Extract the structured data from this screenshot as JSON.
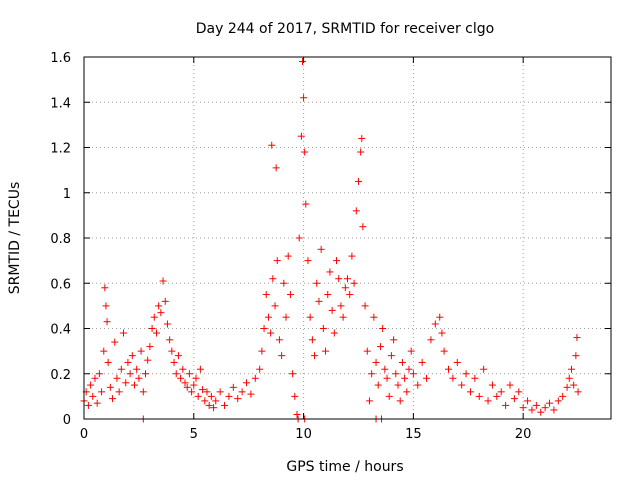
{
  "chart_data": {
    "type": "scatter",
    "title": "Day 244 of 2017, SRMTID for receiver clgo",
    "xlabel": "GPS time / hours",
    "ylabel": "SRMTID / TECUs",
    "xlim": [
      0,
      24
    ],
    "ylim": [
      0,
      1.6
    ],
    "x_ticks": [
      "0",
      "5",
      "10",
      "15",
      "20"
    ],
    "y_ticks": [
      "0",
      "0.2",
      "0.4",
      "0.6",
      "0.8",
      "1",
      "1.2",
      "1.4",
      "1.6"
    ],
    "grid": true,
    "marker": "+",
    "color": "#ff0000",
    "series": [
      {
        "name": "SRMTID",
        "points": [
          [
            0.0,
            0.08
          ],
          [
            0.1,
            0.12
          ],
          [
            0.2,
            0.06
          ],
          [
            0.3,
            0.15
          ],
          [
            0.4,
            0.1
          ],
          [
            0.5,
            0.18
          ],
          [
            0.6,
            0.07
          ],
          [
            0.7,
            0.2
          ],
          [
            0.8,
            0.12
          ],
          [
            0.9,
            0.3
          ],
          [
            0.95,
            0.58
          ],
          [
            1.0,
            0.5
          ],
          [
            1.05,
            0.43
          ],
          [
            1.1,
            0.25
          ],
          [
            1.2,
            0.14
          ],
          [
            1.3,
            0.09
          ],
          [
            1.4,
            0.34
          ],
          [
            1.5,
            0.18
          ],
          [
            1.6,
            0.12
          ],
          [
            1.7,
            0.22
          ],
          [
            1.8,
            0.38
          ],
          [
            1.9,
            0.16
          ],
          [
            2.0,
            0.25
          ],
          [
            2.1,
            0.2
          ],
          [
            2.2,
            0.28
          ],
          [
            2.3,
            0.15
          ],
          [
            2.4,
            0.22
          ],
          [
            2.5,
            0.18
          ],
          [
            2.6,
            0.3
          ],
          [
            2.7,
            0.12
          ],
          [
            2.8,
            0.2
          ],
          [
            2.9,
            0.26
          ],
          [
            3.0,
            0.32
          ],
          [
            3.1,
            0.4
          ],
          [
            3.2,
            0.45
          ],
          [
            3.3,
            0.38
          ],
          [
            3.4,
            0.5
          ],
          [
            3.5,
            0.47
          ],
          [
            3.6,
            0.61
          ],
          [
            3.7,
            0.52
          ],
          [
            3.8,
            0.42
          ],
          [
            3.9,
            0.35
          ],
          [
            4.0,
            0.3
          ],
          [
            4.1,
            0.25
          ],
          [
            4.2,
            0.2
          ],
          [
            4.3,
            0.28
          ],
          [
            4.4,
            0.18
          ],
          [
            4.5,
            0.22
          ],
          [
            4.6,
            0.16
          ],
          [
            4.7,
            0.14
          ],
          [
            4.8,
            0.2
          ],
          [
            4.9,
            0.12
          ],
          [
            5.0,
            0.15
          ],
          [
            5.1,
            0.18
          ],
          [
            5.2,
            0.1
          ],
          [
            5.3,
            0.22
          ],
          [
            5.4,
            0.13
          ],
          [
            5.5,
            0.08
          ],
          [
            5.6,
            0.12
          ],
          [
            5.7,
            0.06
          ],
          [
            5.8,
            0.1
          ],
          [
            5.9,
            0.05
          ],
          [
            6.0,
            0.08
          ],
          [
            6.2,
            0.12
          ],
          [
            6.4,
            0.06
          ],
          [
            6.6,
            0.1
          ],
          [
            6.8,
            0.14
          ],
          [
            7.0,
            0.09
          ],
          [
            7.2,
            0.12
          ],
          [
            7.4,
            0.16
          ],
          [
            7.6,
            0.11
          ],
          [
            7.8,
            0.18
          ],
          [
            8.0,
            0.22
          ],
          [
            8.1,
            0.3
          ],
          [
            8.2,
            0.4
          ],
          [
            8.3,
            0.55
          ],
          [
            8.4,
            0.45
          ],
          [
            8.5,
            0.38
          ],
          [
            8.55,
            1.21
          ],
          [
            8.6,
            0.62
          ],
          [
            8.7,
            0.5
          ],
          [
            8.75,
            1.11
          ],
          [
            8.8,
            0.7
          ],
          [
            8.9,
            0.35
          ],
          [
            9.0,
            0.28
          ],
          [
            9.1,
            0.6
          ],
          [
            9.2,
            0.45
          ],
          [
            9.3,
            0.72
          ],
          [
            9.4,
            0.55
          ],
          [
            9.5,
            0.2
          ],
          [
            9.6,
            0.1
          ],
          [
            9.7,
            0.02
          ],
          [
            9.8,
            0.8
          ],
          [
            9.9,
            1.25
          ],
          [
            9.95,
            1.58
          ],
          [
            10.0,
            1.42
          ],
          [
            10.05,
            1.18
          ],
          [
            10.1,
            0.95
          ],
          [
            10.2,
            0.7
          ],
          [
            10.3,
            0.45
          ],
          [
            10.4,
            0.35
          ],
          [
            10.5,
            0.28
          ],
          [
            10.6,
            0.6
          ],
          [
            10.7,
            0.52
          ],
          [
            10.8,
            0.75
          ],
          [
            10.9,
            0.4
          ],
          [
            11.0,
            0.3
          ],
          [
            11.1,
            0.55
          ],
          [
            11.2,
            0.65
          ],
          [
            11.3,
            0.48
          ],
          [
            11.4,
            0.38
          ],
          [
            11.5,
            0.7
          ],
          [
            11.6,
            0.62
          ],
          [
            11.7,
            0.5
          ],
          [
            11.8,
            0.45
          ],
          [
            11.9,
            0.58
          ],
          [
            12.0,
            0.62
          ],
          [
            12.1,
            0.55
          ],
          [
            12.2,
            0.72
          ],
          [
            12.3,
            0.6
          ],
          [
            12.4,
            0.92
          ],
          [
            12.5,
            1.05
          ],
          [
            12.6,
            1.18
          ],
          [
            12.65,
            1.24
          ],
          [
            12.7,
            0.85
          ],
          [
            12.8,
            0.5
          ],
          [
            12.9,
            0.3
          ],
          [
            13.0,
            0.08
          ],
          [
            13.1,
            0.2
          ],
          [
            13.2,
            0.45
          ],
          [
            13.3,
            0.25
          ],
          [
            13.4,
            0.15
          ],
          [
            13.5,
            0.32
          ],
          [
            13.6,
            0.4
          ],
          [
            13.7,
            0.22
          ],
          [
            13.8,
            0.18
          ],
          [
            13.9,
            0.1
          ],
          [
            14.0,
            0.28
          ],
          [
            14.1,
            0.35
          ],
          [
            14.2,
            0.2
          ],
          [
            14.3,
            0.15
          ],
          [
            14.4,
            0.08
          ],
          [
            14.5,
            0.25
          ],
          [
            14.6,
            0.18
          ],
          [
            14.7,
            0.12
          ],
          [
            14.8,
            0.22
          ],
          [
            14.9,
            0.3
          ],
          [
            15.0,
            0.2
          ],
          [
            15.2,
            0.15
          ],
          [
            15.4,
            0.25
          ],
          [
            15.6,
            0.18
          ],
          [
            15.8,
            0.35
          ],
          [
            16.0,
            0.42
          ],
          [
            16.2,
            0.45
          ],
          [
            16.3,
            0.38
          ],
          [
            16.4,
            0.3
          ],
          [
            16.6,
            0.22
          ],
          [
            16.8,
            0.18
          ],
          [
            17.0,
            0.25
          ],
          [
            17.2,
            0.15
          ],
          [
            17.4,
            0.2
          ],
          [
            17.6,
            0.12
          ],
          [
            17.8,
            0.18
          ],
          [
            18.0,
            0.1
          ],
          [
            18.2,
            0.22
          ],
          [
            18.4,
            0.08
          ],
          [
            18.6,
            0.15
          ],
          [
            18.8,
            0.1
          ],
          [
            19.0,
            0.12
          ],
          [
            19.2,
            0.06
          ],
          [
            19.4,
            0.15
          ],
          [
            19.6,
            0.09
          ],
          [
            19.8,
            0.12
          ],
          [
            20.0,
            0.05
          ],
          [
            20.2,
            0.08
          ],
          [
            20.4,
            0.04
          ],
          [
            20.6,
            0.06
          ],
          [
            20.8,
            0.03
          ],
          [
            21.0,
            0.05
          ],
          [
            21.2,
            0.07
          ],
          [
            21.4,
            0.04
          ],
          [
            21.6,
            0.08
          ],
          [
            21.8,
            0.1
          ],
          [
            22.0,
            0.14
          ],
          [
            22.1,
            0.18
          ],
          [
            22.2,
            0.22
          ],
          [
            22.3,
            0.15
          ],
          [
            22.4,
            0.28
          ],
          [
            22.45,
            0.36
          ],
          [
            22.5,
            0.12
          ],
          [
            2.7,
            0.0
          ],
          [
            9.75,
            0.0
          ],
          [
            10.05,
            0.0
          ],
          [
            13.3,
            0.0
          ],
          [
            13.55,
            0.0
          ]
        ]
      }
    ]
  }
}
